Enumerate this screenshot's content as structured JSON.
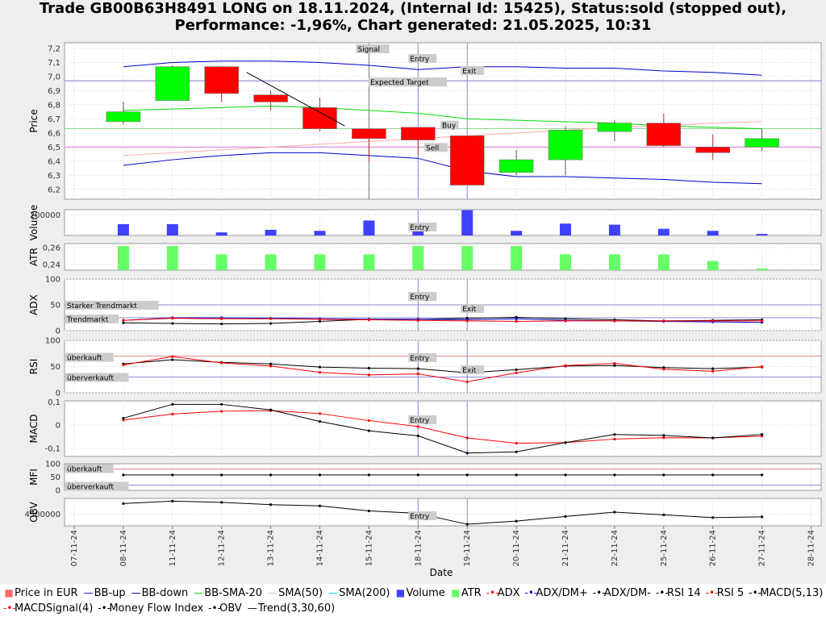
{
  "title": {
    "line1": "Trade GB00B63H8491 LONG on 18.11.2024, (Internal Id: 15425), Status:sold (stopped out),",
    "line2": "Performance: -1,96%, Chart generated: 21.05.2025, 10:31"
  },
  "colors": {
    "up": "#00ff00",
    "down": "#ff0000",
    "bb": "#0000cc",
    "bb_sma": "#00dd00",
    "sma50": "#ffaaaa",
    "volume": "#4040ff",
    "atr": "#66ff66",
    "red_line": "#ff0000",
    "black_line": "#000000",
    "ref_red": "#cc6666",
    "ref_blue": "#6666cc"
  },
  "chart_data": {
    "type": "candlestick",
    "xlabel": "Date",
    "x_ticks": [
      "07-11-24",
      "08-11-24",
      "11-11-24",
      "12-11-24",
      "13-11-24",
      "14-11-24",
      "15-11-24",
      "18-11-24",
      "19-11-24",
      "20-11-24",
      "21-11-24",
      "22-11-24",
      "25-11-24",
      "26-11-24",
      "27-11-24",
      "28-11-24"
    ],
    "markers": [
      {
        "label": "Signal",
        "date": "15-11-24"
      },
      {
        "label": "Entry",
        "date": "18-11-24"
      },
      {
        "label": "Exit",
        "date": "19-11-24"
      }
    ],
    "price": {
      "ylabel": "Price",
      "ylim": [
        6.13,
        7.24
      ],
      "yticks": [
        "7,2",
        "7,1",
        "7,0",
        "6,9",
        "6,8",
        "6,7",
        "6,6",
        "6,5",
        "6,4",
        "6,3",
        "6,2"
      ],
      "candles": [
        {
          "date": "08-11-24",
          "open": 6.68,
          "high": 6.82,
          "low": 6.66,
          "close": 6.75
        },
        {
          "date": "11-11-24",
          "open": 6.83,
          "high": 7.08,
          "low": 6.83,
          "close": 7.07
        },
        {
          "date": "12-11-24",
          "open": 7.07,
          "high": 7.07,
          "low": 6.82,
          "close": 6.88
        },
        {
          "date": "13-11-24",
          "open": 6.87,
          "high": 6.9,
          "low": 6.76,
          "close": 6.82
        },
        {
          "date": "14-11-24",
          "open": 6.78,
          "high": 6.85,
          "low": 6.61,
          "close": 6.63
        },
        {
          "date": "15-11-24",
          "open": 6.63,
          "high": 6.63,
          "low": 6.4,
          "close": 6.56
        },
        {
          "date": "18-11-24",
          "open": 6.64,
          "high": 6.64,
          "low": 6.44,
          "close": 6.55
        },
        {
          "date": "19-11-24",
          "open": 6.58,
          "high": 6.58,
          "low": 6.23,
          "close": 6.23
        },
        {
          "date": "20-11-24",
          "open": 6.32,
          "high": 6.48,
          "low": 6.3,
          "close": 6.41
        },
        {
          "date": "21-11-24",
          "open": 6.41,
          "high": 6.65,
          "low": 6.3,
          "close": 6.62
        },
        {
          "date": "22-11-24",
          "open": 6.61,
          "high": 6.69,
          "low": 6.54,
          "close": 6.67
        },
        {
          "date": "25-11-24",
          "open": 6.67,
          "high": 6.74,
          "low": 6.5,
          "close": 6.51
        },
        {
          "date": "26-11-24",
          "open": 6.5,
          "high": 6.59,
          "low": 6.41,
          "close": 6.46
        },
        {
          "date": "27-11-24",
          "open": 6.5,
          "high": 6.63,
          "low": 6.47,
          "close": 6.56
        }
      ],
      "bb_up": [
        7.07,
        7.1,
        7.11,
        7.11,
        7.1,
        7.08,
        7.05,
        7.07,
        7.07,
        7.06,
        7.06,
        7.04,
        7.03,
        7.01
      ],
      "bb_down": [
        6.37,
        6.41,
        6.44,
        6.46,
        6.46,
        6.44,
        6.42,
        6.33,
        6.29,
        6.29,
        6.28,
        6.27,
        6.25,
        6.24
      ],
      "bb_sma20": [
        6.76,
        6.77,
        6.78,
        6.79,
        6.78,
        6.76,
        6.74,
        6.7,
        6.69,
        6.68,
        6.67,
        6.65,
        6.64,
        6.63
      ],
      "sma50": [
        6.44,
        6.46,
        6.48,
        6.5,
        6.52,
        6.54,
        6.56,
        6.58,
        6.6,
        6.62,
        6.64,
        6.65,
        6.67,
        6.68
      ],
      "trend_line": {
        "from": {
          "date": "13-11-24",
          "value": 7.03
        },
        "to": {
          "date": "15-11-24",
          "value": 6.65
        }
      },
      "h_lines": [
        {
          "label": "Expected Target",
          "value": 6.97,
          "color": "#6666cc"
        },
        {
          "label": "Buy",
          "value": 6.63,
          "color": "#66cc66"
        },
        {
          "label": "Sell",
          "value": 6.5,
          "color": "#cc66cc"
        }
      ]
    },
    "volume": {
      "ylabel": "Volume",
      "ytick": "200000",
      "values": [
        110000,
        110000,
        30000,
        55000,
        45000,
        145000,
        85000,
        245000,
        45000,
        115000,
        105000,
        65000,
        45000,
        15000
      ]
    },
    "atr": {
      "ylabel": "ATR",
      "yticks": [
        "0,26",
        "0,24"
      ],
      "ylim": [
        0.233,
        0.265
      ],
      "values": [
        0.262,
        0.262,
        0.252,
        0.252,
        0.252,
        0.252,
        0.262,
        0.262,
        0.262,
        0.252,
        0.252,
        0.252,
        0.244,
        0.235
      ]
    },
    "adx": {
      "ylabel": "ADX",
      "ylim": [
        0,
        100
      ],
      "yticks": [
        "100",
        "50",
        "0"
      ],
      "ref_lines": [
        {
          "label": "Starker Trendmarkt",
          "value": 50
        },
        {
          "label": "Trendmarkt",
          "value": 25
        }
      ],
      "adx": [
        20,
        24,
        23,
        23,
        22,
        21,
        20,
        19,
        18,
        19,
        19,
        19,
        19,
        19
      ],
      "dm_plus": [
        20,
        25,
        25,
        24,
        23,
        22,
        22,
        21,
        23,
        20,
        19,
        18,
        17,
        16
      ],
      "dm_minus": [
        15,
        14,
        13,
        14,
        18,
        22,
        22,
        24,
        26,
        23,
        21,
        19,
        20,
        21
      ]
    },
    "rsi": {
      "ylabel": "RSI",
      "ylim": [
        0,
        100
      ],
      "yticks": [
        "100",
        "50",
        "0"
      ],
      "ref_lines": [
        {
          "label": "überkauft",
          "value": 70
        },
        {
          "label": "überverkauft",
          "value": 30
        }
      ],
      "rsi14": [
        55,
        63,
        58,
        55,
        49,
        47,
        46,
        38,
        44,
        51,
        52,
        48,
        46,
        49
      ],
      "rsi5": [
        53,
        69,
        57,
        51,
        39,
        34,
        36,
        21,
        38,
        52,
        56,
        45,
        41,
        50
      ]
    },
    "macd": {
      "ylabel": "MACD",
      "ylim": [
        -0.135,
        0.105
      ],
      "yticks": [
        "0,1",
        "0",
        "-0,1"
      ],
      "macd": [
        0.03,
        0.09,
        0.09,
        0.066,
        0.016,
        -0.024,
        -0.046,
        -0.12,
        -0.115,
        -0.075,
        -0.04,
        -0.044,
        -0.055,
        -0.04
      ],
      "signal": [
        0.022,
        0.048,
        0.06,
        0.063,
        0.05,
        0.02,
        -0.006,
        -0.055,
        -0.078,
        -0.075,
        -0.06,
        -0.054,
        -0.055,
        -0.047
      ]
    },
    "mfi": {
      "ylabel": "MFI",
      "ylim": [
        0,
        100
      ],
      "yticks": [
        "100",
        "50",
        "0"
      ],
      "ref_lines": [
        {
          "label": "überkauft",
          "value": 80
        },
        {
          "label": "überverkauft",
          "value": 20
        }
      ],
      "values": [
        58,
        58,
        58,
        58,
        58,
        58,
        58,
        58,
        58,
        58,
        58,
        58,
        58,
        58
      ]
    },
    "obv": {
      "ylabel": "OBV",
      "ytick": "4500000",
      "ylim": [
        4200000,
        4900000
      ],
      "values": [
        4770000,
        4830000,
        4800000,
        4740000,
        4710000,
        4580000,
        4520000,
        4240000,
        4320000,
        4440000,
        4550000,
        4480000,
        4410000,
        4430000
      ]
    },
    "legend": [
      {
        "label": "Price in EUR",
        "symbol": "square",
        "color": "#ff6666"
      },
      {
        "label": "BB-up",
        "symbol": "line",
        "color": "#0000cc"
      },
      {
        "label": "BB-down",
        "symbol": "line",
        "color": "#000066"
      },
      {
        "label": "BB-SMA-20",
        "symbol": "line",
        "color": "#00cc00"
      },
      {
        "label": "SMA(50)",
        "symbol": "line",
        "color": "#ffaaaa"
      },
      {
        "label": "SMA(200)",
        "symbol": "line",
        "color": "#00cccc"
      },
      {
        "label": "Volume",
        "symbol": "square",
        "color": "#4040ff"
      },
      {
        "label": "ATR",
        "symbol": "square",
        "color": "#66ff66"
      },
      {
        "label": "ADX",
        "symbol": "dotline",
        "color": "#ff0000"
      },
      {
        "label": "ADX/DM+",
        "symbol": "dotline",
        "color": "#0000cc"
      },
      {
        "label": "ADX/DM-",
        "symbol": "dotline",
        "color": "#000000"
      },
      {
        "label": "RSI 14",
        "symbol": "dotline",
        "color": "#000000"
      },
      {
        "label": "RSI 5",
        "symbol": "dotline",
        "color": "#ff0000"
      },
      {
        "label": "MACD(5,13)",
        "symbol": "dotline",
        "color": "#000000"
      },
      {
        "label": "MACDSignal(4)",
        "symbol": "dotline",
        "color": "#ff0000"
      },
      {
        "label": "Money Flow Index",
        "symbol": "dotline",
        "color": "#000000"
      },
      {
        "label": "OBV",
        "symbol": "dotline",
        "color": "#000000"
      },
      {
        "label": "Trend(3,30,60)",
        "symbol": "line",
        "color": "#000000"
      }
    ]
  }
}
